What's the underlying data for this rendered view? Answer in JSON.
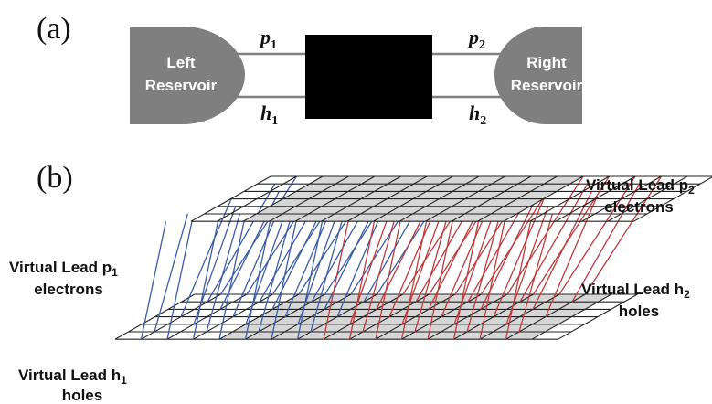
{
  "panel_a": {
    "label": "(a)",
    "left_reservoir": {
      "line1": "Left",
      "line2": "Reservoir"
    },
    "right_reservoir": {
      "line1": "Right",
      "line2": "Reservoir"
    },
    "top_left": {
      "base": "p",
      "sub": "1"
    },
    "top_right": {
      "base": "p",
      "sub": "2"
    },
    "bottom_left": {
      "base": "h",
      "sub": "1"
    },
    "bottom_right": {
      "base": "h",
      "sub": "2"
    },
    "colors": {
      "reservoir": "#7f7f7f",
      "box": "#000000",
      "wire": "#7f7f7f"
    }
  },
  "panel_b": {
    "label": "(b)",
    "lead_p1": {
      "line1": "Virtual Lead p",
      "sub": "1",
      "line2": "electrons"
    },
    "lead_p2": {
      "line1": "Virtual Lead p",
      "sub": "2",
      "line2": "electrons"
    },
    "lead_h1": {
      "line1": "Virtual Lead h",
      "sub": "1",
      "line2": "holes"
    },
    "lead_h2": {
      "line1": "Virtual Lead h",
      "sub": "2",
      "line2": "holes"
    },
    "colors": {
      "connector_left": "#3b5ba8",
      "connector_right": "#c0393b",
      "central_shade": "#d6d6d6",
      "grid": "#222222"
    }
  }
}
